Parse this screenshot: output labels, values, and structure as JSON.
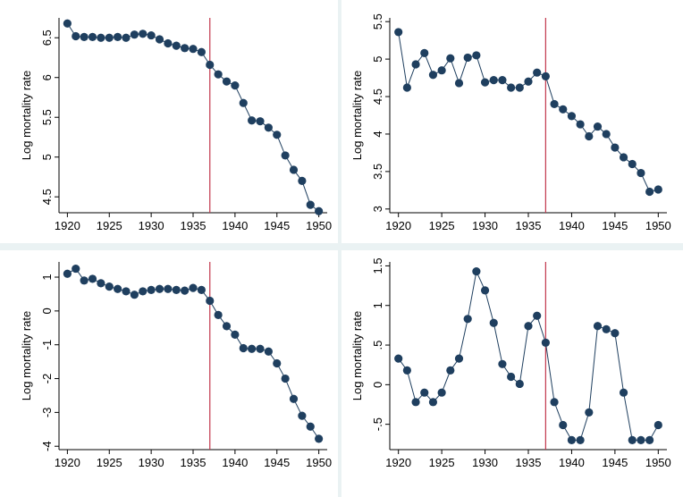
{
  "colors": {
    "marker": "#1f3f5f",
    "line": "#1f3f5f",
    "reference": "#c2364b"
  },
  "chart_data": [
    {
      "type": "line",
      "title": "",
      "xlabel": "",
      "ylabel": "Log mortality rate",
      "xlim": [
        1919,
        1951
      ],
      "ylim": [
        4.3,
        6.75
      ],
      "xticks": [
        1920,
        1925,
        1930,
        1935,
        1940,
        1945,
        1950
      ],
      "xtick_labels": [
        "1920",
        "1925",
        "1930",
        "1935",
        "1940",
        "1945",
        "1950"
      ],
      "yticks": [
        4.5,
        5,
        5.5,
        6,
        6.5
      ],
      "ytick_labels": [
        "4.5",
        "5",
        "5.5",
        "6",
        "6.5"
      ],
      "reference_x": 1937,
      "grid": false,
      "x": [
        1920,
        1921,
        1922,
        1923,
        1924,
        1925,
        1926,
        1927,
        1928,
        1929,
        1930,
        1931,
        1932,
        1933,
        1934,
        1935,
        1936,
        1937,
        1938,
        1939,
        1940,
        1941,
        1942,
        1943,
        1944,
        1945,
        1946,
        1947,
        1948,
        1949,
        1950
      ],
      "series": [
        {
          "values": [
            6.68,
            6.52,
            6.51,
            6.51,
            6.5,
            6.5,
            6.51,
            6.5,
            6.54,
            6.55,
            6.53,
            6.48,
            6.43,
            6.4,
            6.37,
            6.36,
            6.32,
            6.16,
            6.04,
            5.95,
            5.9,
            5.68,
            5.46,
            5.45,
            5.37,
            5.28,
            5.02,
            4.84,
            4.7,
            4.4,
            4.32
          ]
        }
      ]
    },
    {
      "type": "line",
      "title": "",
      "xlabel": "",
      "ylabel": "Log mortality rate",
      "xlim": [
        1919,
        1951
      ],
      "ylim": [
        2.95,
        5.55
      ],
      "xticks": [
        1920,
        1925,
        1930,
        1935,
        1940,
        1945,
        1950
      ],
      "xtick_labels": [
        "1920",
        "1925",
        "1930",
        "1935",
        "1940",
        "1945",
        "1950"
      ],
      "yticks": [
        3,
        3.5,
        4,
        4.5,
        5,
        5.5
      ],
      "ytick_labels": [
        "3",
        "3.5",
        "4",
        "4.5",
        "5",
        "5.5"
      ],
      "reference_x": 1937,
      "grid": false,
      "x": [
        1920,
        1921,
        1922,
        1923,
        1924,
        1925,
        1926,
        1927,
        1928,
        1929,
        1930,
        1931,
        1932,
        1933,
        1934,
        1935,
        1936,
        1937,
        1938,
        1939,
        1940,
        1941,
        1942,
        1943,
        1944,
        1945,
        1946,
        1947,
        1948,
        1949,
        1950
      ],
      "series": [
        {
          "values": [
            5.36,
            4.62,
            4.93,
            5.08,
            4.79,
            4.85,
            5.01,
            4.68,
            5.02,
            5.05,
            4.69,
            4.72,
            4.72,
            4.62,
            4.62,
            4.7,
            4.82,
            4.77,
            4.4,
            4.33,
            4.24,
            4.13,
            3.97,
            4.1,
            4.0,
            3.82,
            3.69,
            3.6,
            3.48,
            3.23,
            3.26
          ]
        }
      ]
    },
    {
      "type": "line",
      "title": "",
      "xlabel": "",
      "ylabel": "Log mortality rate",
      "xlim": [
        1919,
        1951
      ],
      "ylim": [
        -4.1,
        1.45
      ],
      "xticks": [
        1920,
        1925,
        1930,
        1935,
        1940,
        1945,
        1950
      ],
      "xtick_labels": [
        "1920",
        "1925",
        "1930",
        "1935",
        "1940",
        "1945",
        "1950"
      ],
      "yticks": [
        -4,
        -3,
        -2,
        -1,
        0,
        1
      ],
      "ytick_labels": [
        "-4",
        "-3",
        "-2",
        "-1",
        "0",
        "1"
      ],
      "reference_x": 1937,
      "grid": false,
      "x": [
        1920,
        1921,
        1922,
        1923,
        1924,
        1925,
        1926,
        1927,
        1928,
        1929,
        1930,
        1931,
        1932,
        1933,
        1934,
        1935,
        1936,
        1937,
        1938,
        1939,
        1940,
        1941,
        1942,
        1943,
        1944,
        1945,
        1946,
        1947,
        1948,
        1949,
        1950
      ],
      "series": [
        {
          "values": [
            1.1,
            1.25,
            0.9,
            0.95,
            0.82,
            0.72,
            0.65,
            0.58,
            0.48,
            0.58,
            0.62,
            0.65,
            0.65,
            0.62,
            0.6,
            0.68,
            0.62,
            0.3,
            -0.12,
            -0.45,
            -0.7,
            -1.1,
            -1.12,
            -1.12,
            -1.2,
            -1.55,
            -2.0,
            -2.6,
            -3.1,
            -3.42,
            -3.78
          ]
        }
      ]
    },
    {
      "type": "line",
      "title": "",
      "xlabel": "",
      "ylabel": "Log mortality rate",
      "xlim": [
        1919,
        1951
      ],
      "ylim": [
        -0.82,
        1.55
      ],
      "xticks": [
        1920,
        1925,
        1930,
        1935,
        1940,
        1945,
        1950
      ],
      "xtick_labels": [
        "1920",
        "1925",
        "1930",
        "1935",
        "1940",
        "1945",
        "1950"
      ],
      "yticks": [
        -0.5,
        0,
        0.5,
        1,
        1.5
      ],
      "ytick_labels": [
        "-.5",
        "0",
        ".5",
        "1",
        "1.5"
      ],
      "reference_x": 1937,
      "grid": false,
      "x": [
        1920,
        1921,
        1922,
        1923,
        1924,
        1925,
        1926,
        1927,
        1928,
        1929,
        1930,
        1931,
        1932,
        1933,
        1934,
        1935,
        1936,
        1937,
        1938,
        1939,
        1940,
        1941,
        1942,
        1943,
        1944,
        1945,
        1946,
        1947,
        1948,
        1949,
        1950
      ],
      "series": [
        {
          "values": [
            0.33,
            0.18,
            -0.22,
            -0.1,
            -0.22,
            -0.1,
            0.18,
            0.33,
            0.83,
            1.43,
            1.19,
            0.78,
            0.26,
            0.1,
            0.01,
            0.74,
            0.87,
            0.53,
            -0.22,
            -0.51,
            -0.7,
            -0.7,
            -0.35,
            0.74,
            0.7,
            0.65,
            -0.1,
            -0.7,
            -0.7,
            -0.7,
            -0.51
          ]
        }
      ]
    }
  ]
}
